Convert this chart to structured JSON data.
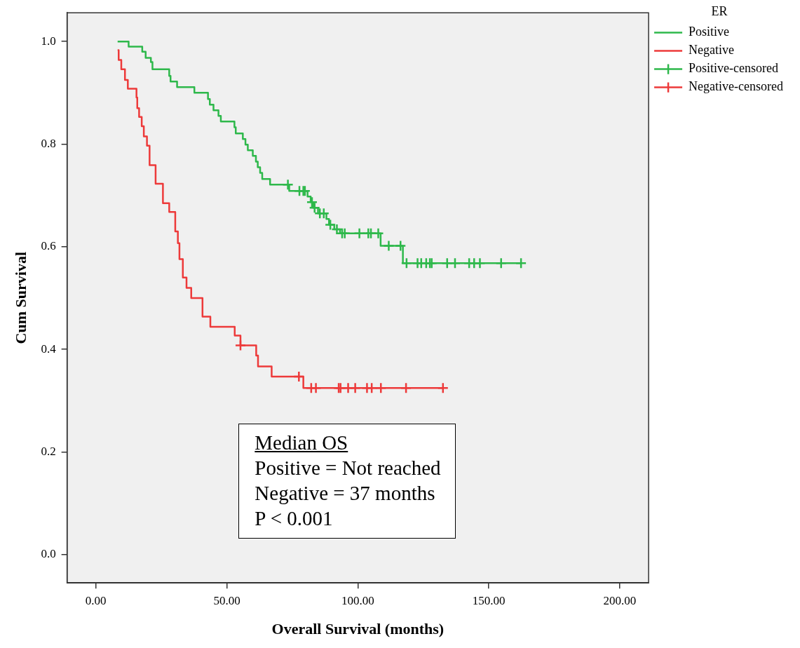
{
  "chart_data": {
    "type": "step",
    "xlabel": "Overall Survival (months)",
    "ylabel": "Cum Survival",
    "legend_title": "ER",
    "legend": "top right",
    "grid": false,
    "xlim": [
      -11,
      211
    ],
    "ylim": [
      -0.055,
      1.056
    ],
    "xticks": [
      {
        "value": 0,
        "label": "0.00"
      },
      {
        "value": 50,
        "label": "50.00"
      },
      {
        "value": 100,
        "label": "100.00"
      },
      {
        "value": 150,
        "label": "150.00"
      },
      {
        "value": 200,
        "label": "200.00"
      }
    ],
    "yticks": [
      {
        "value": 0,
        "label": "0.0"
      },
      {
        "value": 0.2,
        "label": "0.2"
      },
      {
        "value": 0.4,
        "label": "0.4"
      },
      {
        "value": 0.6,
        "label": "0.6"
      },
      {
        "value": 0.8,
        "label": "0.8"
      },
      {
        "value": 1,
        "label": "1.0"
      }
    ],
    "annotations": [
      "Median OS",
      "Positive = Not reached",
      "Negative = 37 months",
      "P < 0.001"
    ],
    "series": [
      {
        "name": "Positive",
        "type": "step",
        "marker": "none",
        "color": "#2eb84b",
        "x": [
          8.3,
          12.5,
          17.7,
          19,
          21,
          21.6,
          28,
          28.5,
          31,
          37.6,
          42.8,
          43.5,
          44.9,
          46.8,
          47.7,
          52.9,
          53.4,
          56.1,
          57.1,
          58,
          59.9,
          61.1,
          61.8,
          62.7,
          63.5,
          66.5,
          73.8,
          80.8,
          82,
          83,
          84.8,
          88,
          89,
          91,
          93.2,
          108.7,
          117.2,
          162.3
        ],
        "values": [
          1.0,
          0.99,
          0.98,
          0.968,
          0.96,
          0.946,
          0.933,
          0.922,
          0.911,
          0.9,
          0.888,
          0.877,
          0.866,
          0.855,
          0.844,
          0.833,
          0.821,
          0.81,
          0.799,
          0.788,
          0.777,
          0.766,
          0.755,
          0.744,
          0.732,
          0.721,
          0.709,
          0.698,
          0.687,
          0.676,
          0.665,
          0.654,
          0.643,
          0.634,
          0.626,
          0.602,
          0.568,
          0.568
        ]
      },
      {
        "name": "Negative",
        "type": "step",
        "marker": "none",
        "color": "#ed3a3a",
        "x": [
          8.3,
          8.7,
          9.7,
          11.1,
          12.2,
          15.5,
          15.8,
          16.5,
          17.5,
          18.3,
          19.5,
          20.5,
          22.8,
          25.6,
          28,
          30.3,
          31.3,
          31.9,
          33.2,
          34.6,
          36.4,
          40.7,
          43.7,
          53,
          55.2,
          61.2,
          61.9,
          67.1,
          79.2,
          132.5
        ],
        "values": [
          0.983,
          0.964,
          0.946,
          0.925,
          0.908,
          0.891,
          0.87,
          0.853,
          0.835,
          0.815,
          0.797,
          0.759,
          0.723,
          0.685,
          0.668,
          0.63,
          0.607,
          0.576,
          0.54,
          0.52,
          0.5,
          0.464,
          0.444,
          0.427,
          0.408,
          0.388,
          0.367,
          0.347,
          0.325,
          0.325
        ]
      },
      {
        "name": "Positive-censored",
        "type": "scatter",
        "marker": "cross",
        "color": "#2eb84b",
        "x": [
          73.3,
          77.7,
          79.2,
          79.8,
          82.5,
          83.5,
          85.5,
          87,
          89.5,
          92,
          94,
          95,
          100.6,
          104,
          105,
          107.8,
          111.8,
          116.3,
          118.6,
          122.8,
          124.2,
          126.1,
          127.5,
          128.2,
          134.1,
          137.1,
          142.5,
          144.4,
          146.6,
          154.7,
          162.3
        ],
        "values": [
          0.721,
          0.709,
          0.709,
          0.709,
          0.687,
          0.676,
          0.665,
          0.665,
          0.643,
          0.634,
          0.626,
          0.626,
          0.626,
          0.626,
          0.626,
          0.626,
          0.602,
          0.602,
          0.568,
          0.568,
          0.568,
          0.568,
          0.568,
          0.568,
          0.568,
          0.568,
          0.568,
          0.568,
          0.568,
          0.568,
          0.568
        ]
      },
      {
        "name": "Negative-censored",
        "type": "scatter",
        "marker": "cross",
        "color": "#ed3a3a",
        "x": [
          55.2,
          77.5,
          82.2,
          84,
          92.7,
          93.4,
          96.3,
          99,
          103.5,
          105.3,
          108.8,
          118.4,
          132.5
        ],
        "values": [
          0.408,
          0.347,
          0.325,
          0.325,
          0.325,
          0.325,
          0.325,
          0.325,
          0.325,
          0.325,
          0.325,
          0.325,
          0.325
        ]
      }
    ]
  }
}
